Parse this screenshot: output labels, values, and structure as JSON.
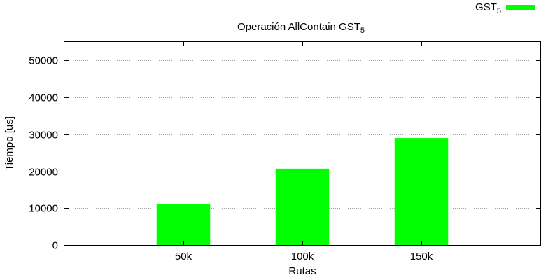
{
  "chart_data": {
    "type": "bar",
    "title": {
      "main": "Operación AllContain GST",
      "subscript": "5"
    },
    "xlabel": "Rutas",
    "ylabel": "Tiempo [us]",
    "categories": [
      "50k",
      "100k",
      "150k"
    ],
    "series": [
      {
        "name": "GST",
        "name_subscript": "5",
        "color": "#00ff00",
        "values": [
          11100,
          20700,
          29000
        ]
      }
    ],
    "ylim": [
      0,
      55000
    ],
    "y_ticks": [
      "0",
      "10000",
      "20000",
      "30000",
      "40000",
      "50000"
    ],
    "x_range": [
      0,
      4
    ],
    "grid": "horizontal dotted",
    "legend_position": "top-right"
  }
}
